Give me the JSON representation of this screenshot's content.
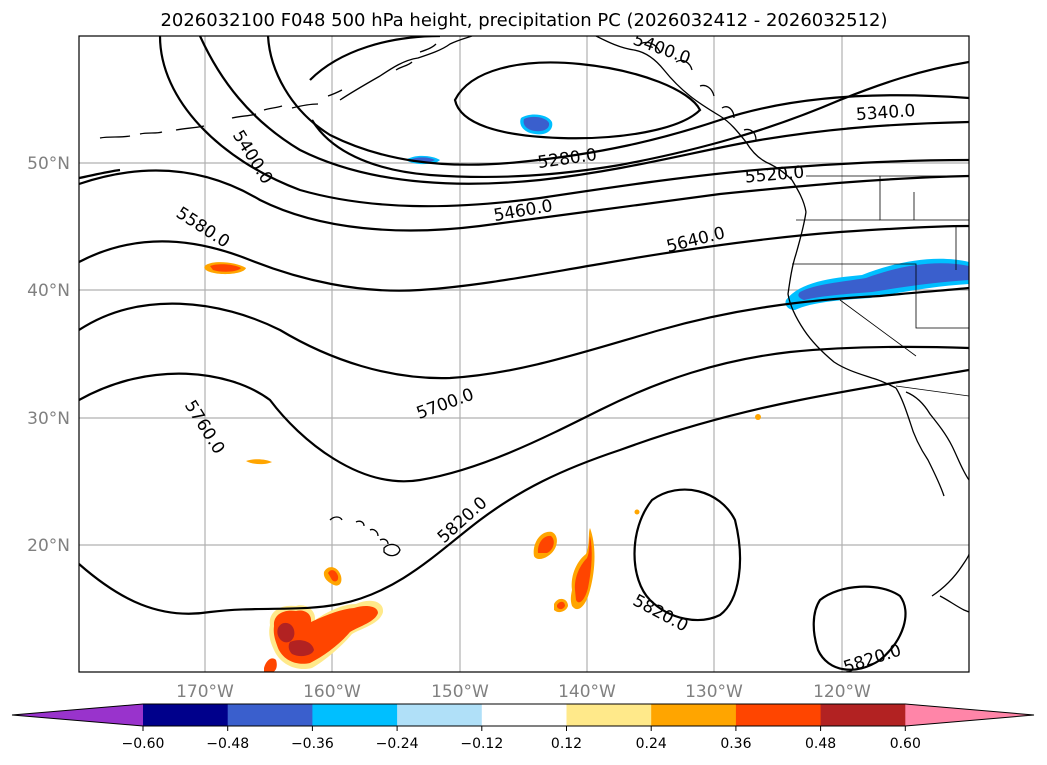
{
  "title": "2026032100 F048 500 hPa height, precipitation PC (2026032412 - 2026032512)",
  "map": {
    "lon_labels": [
      "170°W",
      "160°W",
      "150°W",
      "140°W",
      "130°W",
      "120°W"
    ],
    "lat_labels": [
      "50°N",
      "40°N",
      "30°N",
      "20°N"
    ],
    "contour_labels": {
      "c5340": "5340.0",
      "c5400": "5400.0",
      "c5280": "5280.0",
      "c5520": "5520.0",
      "c5460": "5460.0",
      "c5580": "5580.0",
      "c5640": "5640.0",
      "c5700": "5700.0",
      "c5760": "5760.0",
      "c5820a": "5820.0",
      "c5820b": "5820.0",
      "c5820c": "5820.0",
      "c5400top": "5400.0"
    }
  },
  "colorbar": {
    "ticks": [
      "−0.60",
      "−0.48",
      "−0.36",
      "−0.24",
      "−0.12",
      "0.12",
      "0.24",
      "0.36",
      "0.48",
      "0.60"
    ],
    "colors": [
      "#9933cc",
      "#00008b",
      "#3a5fcd",
      "#00bfff",
      "#b0e0f8",
      "#ffffff",
      "#ffe98a",
      "#ffa500",
      "#ff4500",
      "#b22222",
      "#ff85a8"
    ]
  },
  "precip_colors": {
    "neg_light": "#00bfff",
    "neg_mid": "#3a5fcd",
    "pos_yellow": "#ffe98a",
    "pos_orange": "#ffa500",
    "pos_red": "#ff4500",
    "pos_dark": "#b22222"
  }
}
